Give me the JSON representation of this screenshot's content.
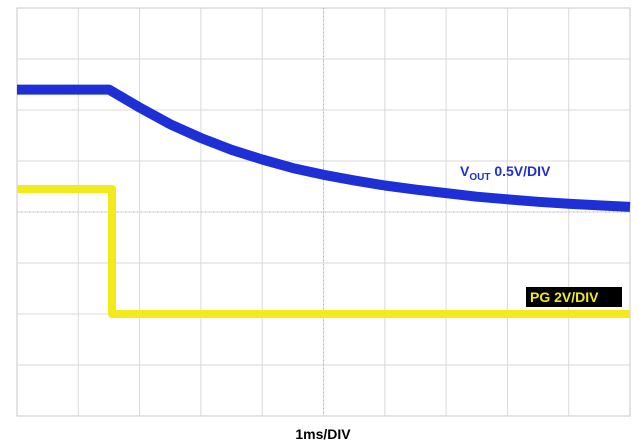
{
  "chart_data": {
    "type": "line",
    "x_unit_label": "1ms/DIV",
    "xlim": [
      0,
      10
    ],
    "ylim": [
      -4,
      4
    ],
    "grid": true,
    "series": [
      {
        "name": "VOUT 0.5V/DIV",
        "label_main": "V",
        "label_sub": "OUT",
        "label_rest": " 0.5V/DIV",
        "color": "#1f2fd6",
        "x": [
          0.0,
          1.5,
          2.0,
          2.5,
          3.0,
          3.5,
          4.0,
          4.5,
          5.0,
          5.5,
          6.0,
          6.5,
          7.0,
          7.5,
          8.0,
          8.5,
          9.0,
          9.5,
          10.0
        ],
        "y": [
          2.4,
          2.4,
          2.05,
          1.72,
          1.45,
          1.22,
          1.03,
          0.86,
          0.73,
          0.62,
          0.52,
          0.44,
          0.37,
          0.3,
          0.25,
          0.2,
          0.16,
          0.13,
          0.1
        ]
      },
      {
        "name": "PG 2V/DIV",
        "color": "#f2ea1a",
        "x": [
          0.0,
          1.55,
          1.55,
          1.55,
          10.0
        ],
        "y": [
          0.45,
          0.45,
          -0.45,
          -2.0,
          -2.0
        ]
      }
    ]
  }
}
